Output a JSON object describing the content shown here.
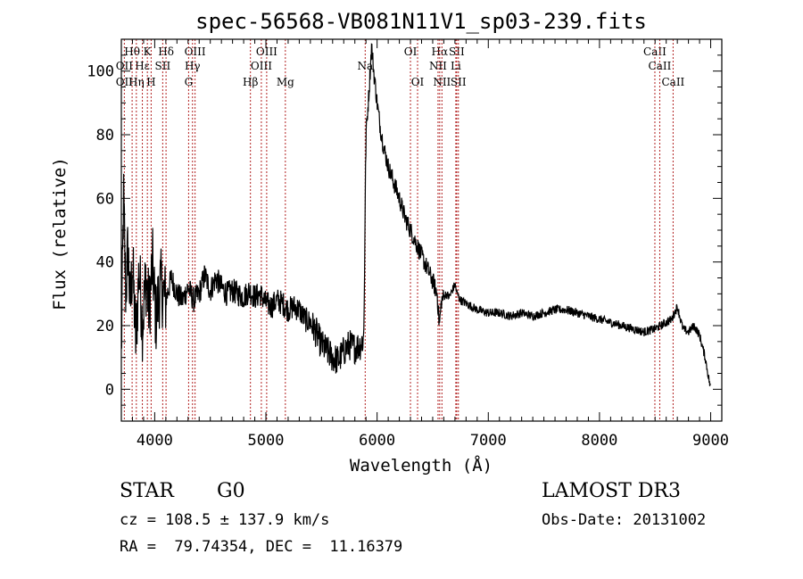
{
  "chart_data": {
    "type": "line",
    "title": "spec-56568-VB081N11V1_sp03-239.fits",
    "xlabel": "Wavelength (Å)",
    "ylabel": "Flux (relative)",
    "xlim": [
      3700,
      9100
    ],
    "ylim": [
      -10,
      110
    ],
    "xticks": [
      4000,
      5000,
      6000,
      7000,
      8000,
      9000
    ],
    "yticks": [
      0,
      20,
      40,
      60,
      80,
      100
    ],
    "grid": false,
    "series": [
      {
        "name": "flux",
        "color": "#000000",
        "anchors": [
          [
            3700,
            10
          ],
          [
            3720,
            60
          ],
          [
            3740,
            30
          ],
          [
            3760,
            45
          ],
          [
            3780,
            25
          ],
          [
            3800,
            40
          ],
          [
            3830,
            15
          ],
          [
            3860,
            38
          ],
          [
            3890,
            20
          ],
          [
            3920,
            35
          ],
          [
            3950,
            25
          ],
          [
            3980,
            40
          ],
          [
            4010,
            22
          ],
          [
            4050,
            33
          ],
          [
            4100,
            28
          ],
          [
            4150,
            35
          ],
          [
            4200,
            30
          ],
          [
            4250,
            28
          ],
          [
            4300,
            32
          ],
          [
            4350,
            28
          ],
          [
            4400,
            30
          ],
          [
            4450,
            36
          ],
          [
            4500,
            31
          ],
          [
            4550,
            35
          ],
          [
            4600,
            32
          ],
          [
            4650,
            30
          ],
          [
            4700,
            31
          ],
          [
            4750,
            30
          ],
          [
            4800,
            29
          ],
          [
            4850,
            31
          ],
          [
            4900,
            29
          ],
          [
            4950,
            30
          ],
          [
            5000,
            27
          ],
          [
            5050,
            26
          ],
          [
            5100,
            28
          ],
          [
            5150,
            27
          ],
          [
            5200,
            25
          ],
          [
            5250,
            26
          ],
          [
            5300,
            25
          ],
          [
            5350,
            22
          ],
          [
            5400,
            21
          ],
          [
            5450,
            18
          ],
          [
            5500,
            14
          ],
          [
            5550,
            12
          ],
          [
            5600,
            10
          ],
          [
            5650,
            9
          ],
          [
            5700,
            12
          ],
          [
            5750,
            14
          ],
          [
            5800,
            13
          ],
          [
            5850,
            14
          ],
          [
            5880,
            16
          ],
          [
            5900,
            80
          ],
          [
            5930,
            95
          ],
          [
            5950,
            108
          ],
          [
            5970,
            100
          ],
          [
            6000,
            90
          ],
          [
            6030,
            82
          ],
          [
            6060,
            76
          ],
          [
            6100,
            70
          ],
          [
            6150,
            65
          ],
          [
            6200,
            60
          ],
          [
            6250,
            54
          ],
          [
            6300,
            50
          ],
          [
            6350,
            46
          ],
          [
            6400,
            42
          ],
          [
            6450,
            38
          ],
          [
            6500,
            34
          ],
          [
            6540,
            30
          ],
          [
            6560,
            20
          ],
          [
            6580,
            28
          ],
          [
            6620,
            30
          ],
          [
            6650,
            29
          ],
          [
            6700,
            33
          ],
          [
            6720,
            30
          ],
          [
            6750,
            28
          ],
          [
            6800,
            27
          ],
          [
            6850,
            26
          ],
          [
            6900,
            25
          ],
          [
            7000,
            24
          ],
          [
            7100,
            24
          ],
          [
            7200,
            23
          ],
          [
            7300,
            24
          ],
          [
            7400,
            23
          ],
          [
            7500,
            24
          ],
          [
            7600,
            25
          ],
          [
            7700,
            25
          ],
          [
            7800,
            24
          ],
          [
            7900,
            23
          ],
          [
            8000,
            22
          ],
          [
            8100,
            21
          ],
          [
            8200,
            20
          ],
          [
            8300,
            19
          ],
          [
            8400,
            18
          ],
          [
            8500,
            19
          ],
          [
            8550,
            20
          ],
          [
            8600,
            21
          ],
          [
            8650,
            22
          ],
          [
            8700,
            26
          ],
          [
            8750,
            19
          ],
          [
            8800,
            18
          ],
          [
            8850,
            20
          ],
          [
            8900,
            17
          ],
          [
            8950,
            10
          ],
          [
            9000,
            0
          ]
        ]
      }
    ],
    "line_markers": [
      {
        "label": "Hθ",
        "wavelength": 3797,
        "row": 0
      },
      {
        "label": "K",
        "wavelength": 3934,
        "row": 0
      },
      {
        "label": "Hδ",
        "wavelength": 4102,
        "row": 0
      },
      {
        "label": "OIII",
        "wavelength": 4363,
        "row": 0
      },
      {
        "label": "OIII",
        "wavelength": 5007,
        "row": 0
      },
      {
        "label": "OI",
        "wavelength": 6300,
        "row": 0
      },
      {
        "label": "Hα",
        "wavelength": 6563,
        "row": 0
      },
      {
        "label": "SII",
        "wavelength": 6716,
        "row": 0
      },
      {
        "label": "CaII",
        "wavelength": 8498,
        "row": 0
      },
      {
        "label": "OII",
        "wavelength": 3727,
        "row": 1
      },
      {
        "label": "Hε",
        "wavelength": 3889,
        "row": 1
      },
      {
        "label": "SII",
        "wavelength": 4072,
        "row": 1
      },
      {
        "label": "Hγ",
        "wavelength": 4340,
        "row": 1
      },
      {
        "label": "OIII",
        "wavelength": 4959,
        "row": 1
      },
      {
        "label": "Na",
        "wavelength": 5893,
        "row": 1
      },
      {
        "label": "NII",
        "wavelength": 6548,
        "row": 1
      },
      {
        "label": "Li",
        "wavelength": 6708,
        "row": 1
      },
      {
        "label": "CaII",
        "wavelength": 8542,
        "row": 1
      },
      {
        "label": "OII",
        "wavelength": 3727,
        "row": 2
      },
      {
        "label": "Hη",
        "wavelength": 3835,
        "row": 2
      },
      {
        "label": "H",
        "wavelength": 3968,
        "row": 2
      },
      {
        "label": "G",
        "wavelength": 4305,
        "row": 2
      },
      {
        "label": "Hβ",
        "wavelength": 4861,
        "row": 2
      },
      {
        "label": "Mg",
        "wavelength": 5175,
        "row": 2
      },
      {
        "label": "OI",
        "wavelength": 6364,
        "row": 2
      },
      {
        "label": "NII",
        "wavelength": 6583,
        "row": 2
      },
      {
        "label": "SII",
        "wavelength": 6731,
        "row": 2
      },
      {
        "label": "CaII",
        "wavelength": 8662,
        "row": 2
      }
    ]
  },
  "info": {
    "object_class": "STAR",
    "subclass": "G0",
    "survey": "LAMOST DR3",
    "cz": "cz = 108.5 ± 137.9 km/s",
    "obs_date": "Obs-Date: 20131002",
    "coords": "RA =  79.74354, DEC =  11.16379"
  },
  "colors": {
    "marker": "#b22222",
    "axis": "#000000"
  }
}
